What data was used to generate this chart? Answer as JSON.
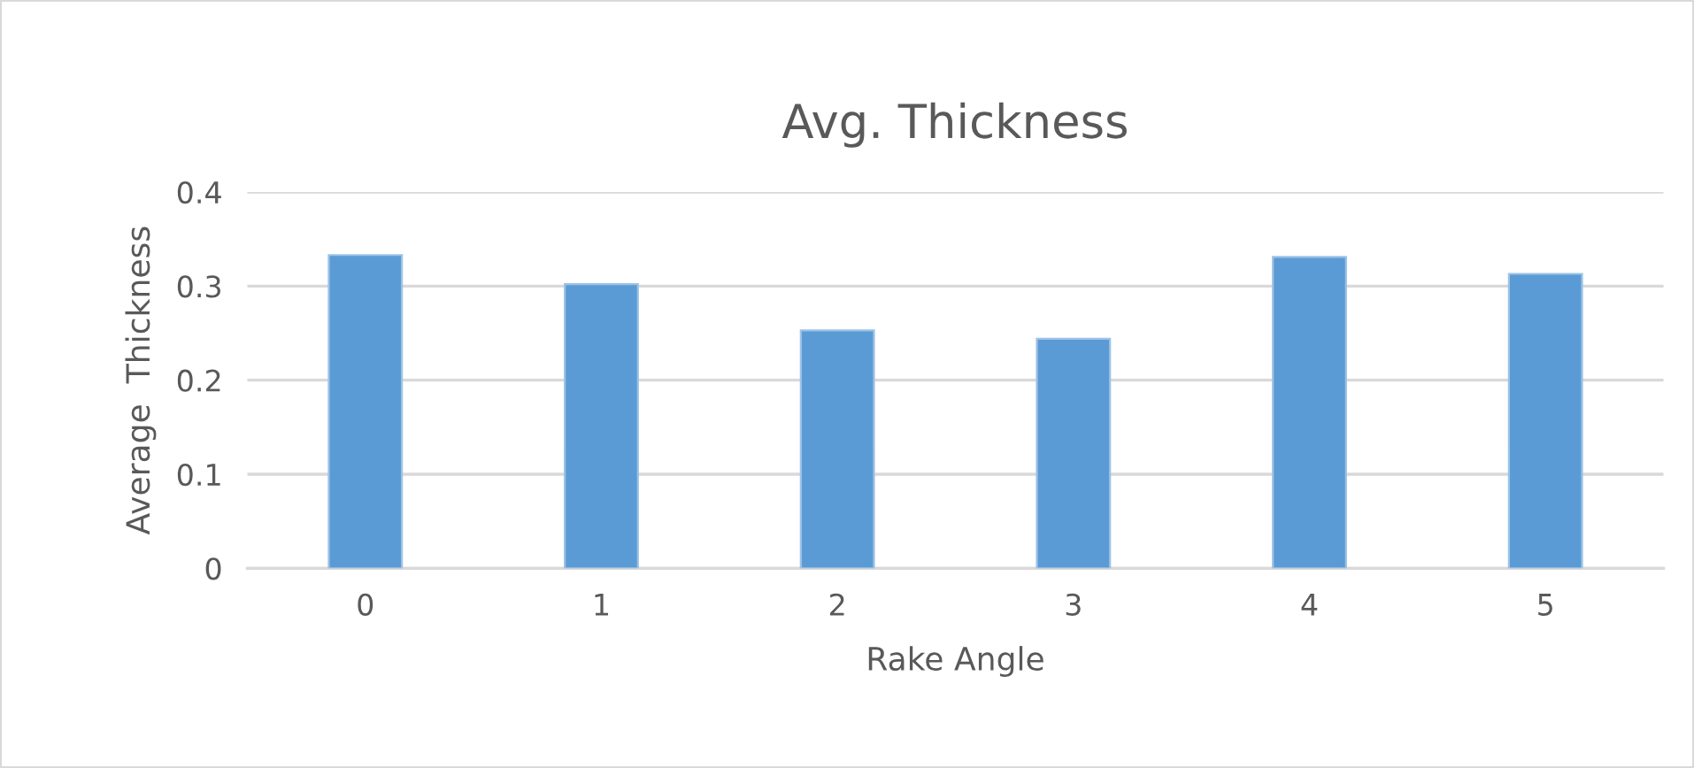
{
  "chart_data": {
    "type": "bar",
    "title": "Avg. Thickness",
    "xlabel": "Rake Angle",
    "ylabel": "Average  Thickness",
    "categories": [
      "0",
      "1",
      "2",
      "3",
      "4",
      "5"
    ],
    "values": [
      0.333,
      0.302,
      0.253,
      0.244,
      0.331,
      0.313
    ],
    "color": "#5b9bd5",
    "ylim": [
      0,
      0.4
    ],
    "yticks": [
      0,
      0.1,
      0.2,
      0.3,
      0.4
    ],
    "grid": "y",
    "legend": false
  }
}
